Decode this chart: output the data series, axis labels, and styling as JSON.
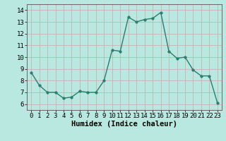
{
  "x": [
    0,
    1,
    2,
    3,
    4,
    5,
    6,
    7,
    8,
    9,
    10,
    11,
    12,
    13,
    14,
    15,
    16,
    17,
    18,
    19,
    20,
    21,
    22,
    23
  ],
  "y": [
    8.7,
    7.6,
    7.0,
    7.0,
    6.5,
    6.6,
    7.1,
    7.0,
    7.0,
    8.0,
    10.6,
    10.5,
    13.4,
    13.0,
    13.2,
    13.3,
    13.8,
    10.5,
    9.9,
    10.0,
    8.9,
    8.4,
    8.4,
    6.1
  ],
  "line_color": "#2d7d6e",
  "marker": "o",
  "markersize": 2.5,
  "linewidth": 1.0,
  "bg_color": "#b8e8e0",
  "grid_color": "#c8a8a8",
  "axis_bg": "#b8e8e0",
  "xlabel": "Humidex (Indice chaleur)",
  "xlabel_fontsize": 7.5,
  "tick_fontsize": 6.5,
  "ylim": [
    5.5,
    14.5
  ],
  "xlim": [
    -0.5,
    23.5
  ],
  "yticks": [
    6,
    7,
    8,
    9,
    10,
    11,
    12,
    13,
    14
  ],
  "xticks": [
    0,
    1,
    2,
    3,
    4,
    5,
    6,
    7,
    8,
    9,
    10,
    11,
    12,
    13,
    14,
    15,
    16,
    17,
    18,
    19,
    20,
    21,
    22,
    23
  ]
}
